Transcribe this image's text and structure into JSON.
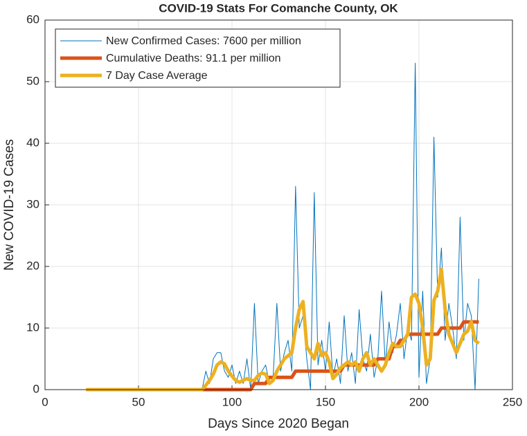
{
  "chart_data": {
    "type": "line",
    "title": "COVID-19 Stats For Comanche County, OK",
    "xlabel": "Days Since 2020 Began",
    "ylabel": "New COVID-19 Cases",
    "xlim": [
      0,
      250
    ],
    "xticks": [
      0,
      50,
      100,
      150,
      200,
      250
    ],
    "ylim": [
      0,
      60
    ],
    "yticks": [
      0,
      10,
      20,
      30,
      40,
      50,
      60
    ],
    "grid": true,
    "legend": "upper left",
    "x": [
      22,
      84,
      86,
      88,
      90,
      92,
      94,
      96,
      98,
      100,
      102,
      104,
      106,
      108,
      110,
      112,
      114,
      116,
      118,
      120,
      122,
      124,
      126,
      128,
      130,
      132,
      134,
      136,
      138,
      140,
      142,
      144,
      146,
      148,
      150,
      152,
      154,
      156,
      158,
      160,
      162,
      164,
      166,
      168,
      170,
      172,
      174,
      176,
      178,
      180,
      182,
      184,
      186,
      188,
      190,
      192,
      194,
      196,
      198,
      200,
      202,
      204,
      206,
      208,
      210,
      212,
      214,
      216,
      218,
      220,
      222,
      224,
      226,
      228,
      230,
      232
    ],
    "series": [
      {
        "name": "New Confirmed Cases: 7600 per million",
        "color": "#0072BD",
        "linewidth": 1,
        "values": [
          0,
          0,
          3,
          1,
          5,
          6,
          6,
          3,
          2,
          4,
          1,
          3,
          1,
          5,
          0,
          14,
          1,
          3,
          4,
          1,
          2,
          14,
          3,
          6,
          8,
          3,
          33,
          10,
          12,
          5,
          0,
          32,
          4,
          8,
          3,
          11,
          2,
          5,
          1,
          12,
          3,
          6,
          1,
          13,
          5,
          3,
          9,
          2,
          5,
          16,
          4,
          11,
          6,
          9,
          14,
          5,
          10,
          8,
          53,
          2,
          16,
          1,
          5,
          41,
          15,
          23,
          8,
          14,
          10,
          5,
          28,
          8,
          14,
          12,
          0,
          18
        ]
      },
      {
        "name": "Cumulative Deaths: 91.1 per million",
        "color": "#D95319",
        "linewidth": 5,
        "values": [
          0,
          0,
          0,
          0,
          0,
          0,
          0,
          0,
          0,
          0,
          0,
          0,
          0,
          0,
          0,
          1,
          1,
          1,
          1,
          2,
          2,
          2,
          2,
          2,
          2,
          2,
          3,
          3,
          3,
          3,
          3,
          3,
          3,
          3,
          3,
          3,
          3,
          3,
          3,
          4,
          4,
          4,
          4,
          4,
          4,
          4,
          4,
          4,
          5,
          5,
          5,
          5,
          7,
          7,
          8,
          8,
          9,
          9,
          9,
          9,
          9,
          9,
          9,
          9,
          9,
          10,
          10,
          10,
          10,
          10,
          10,
          11,
          11,
          11,
          11,
          11
        ]
      },
      {
        "name": "7 Day Case Average",
        "color": "#EDB120",
        "linewidth": 5,
        "values": [
          0,
          0,
          0.7,
          1.5,
          2.5,
          4,
          4.5,
          4.2,
          3,
          2.2,
          1.5,
          1.2,
          1.5,
          1.8,
          1.5,
          1.5,
          2.3,
          2.7,
          2.5,
          1,
          1.5,
          3,
          4,
          5,
          5.5,
          6,
          10,
          13,
          14.3,
          7,
          6,
          5,
          7.5,
          5.5,
          6,
          4.5,
          1.8,
          2.5,
          3.5,
          4,
          4.5,
          4,
          4.5,
          3,
          5,
          6,
          4,
          5,
          4,
          3,
          4,
          6,
          7.5,
          7,
          7,
          8,
          9,
          15,
          15.5,
          14,
          10,
          4,
          5,
          14.5,
          16,
          19.5,
          13,
          9,
          7.5,
          6,
          7.5,
          9,
          9.5,
          11,
          8,
          7.5
        ]
      }
    ]
  }
}
